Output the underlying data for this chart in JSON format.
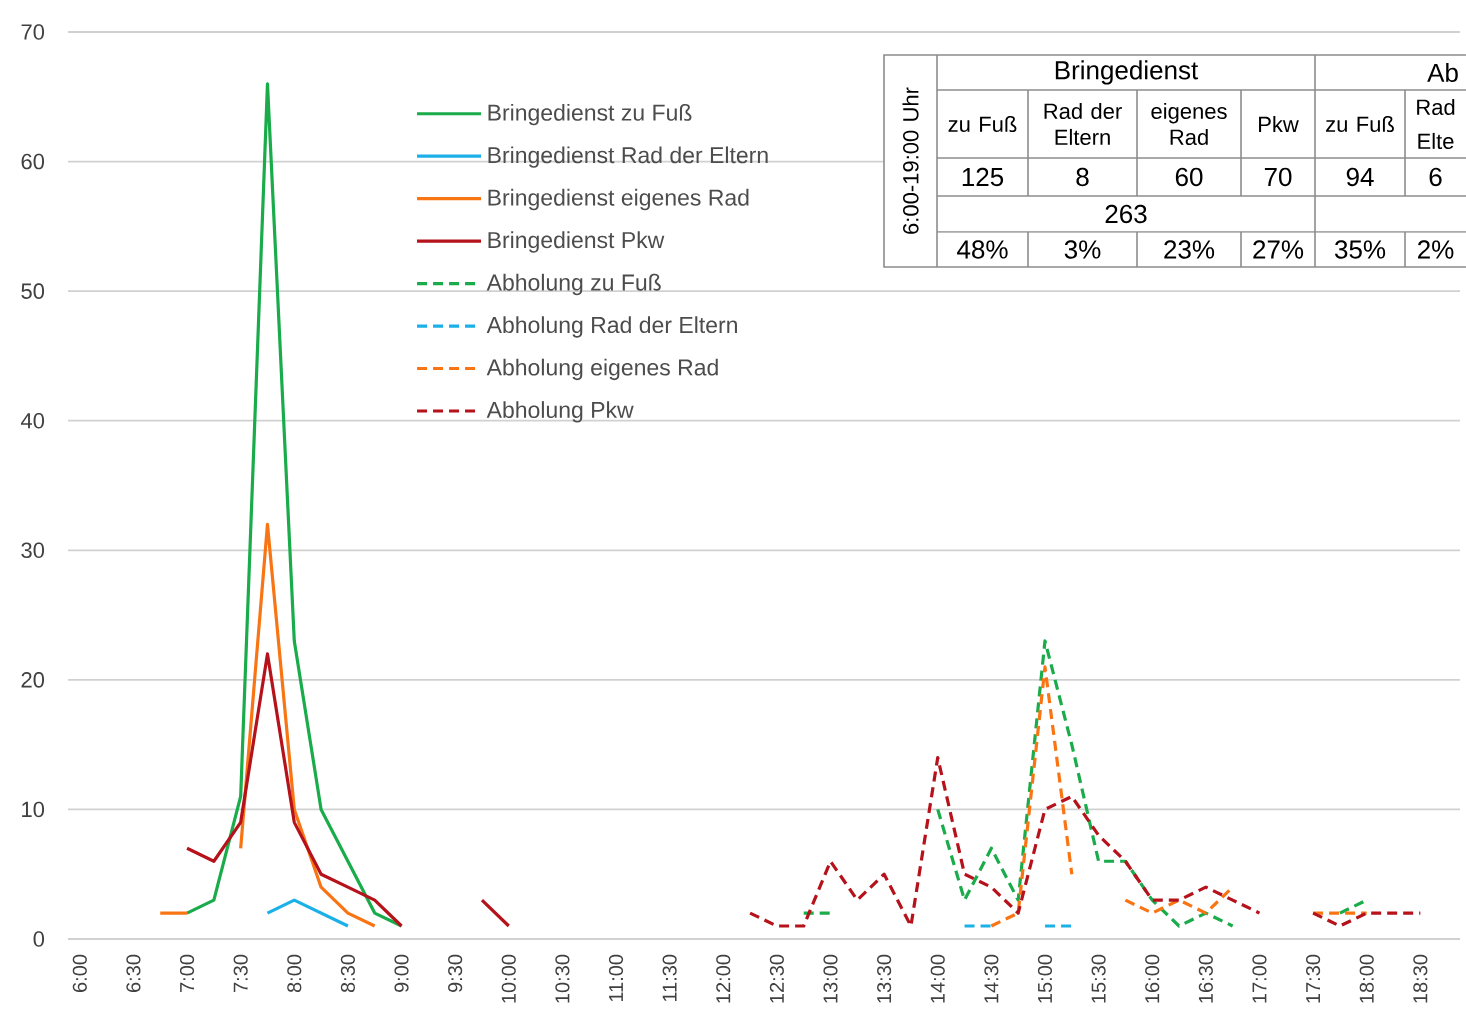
{
  "chart_data": {
    "type": "line",
    "xlim": [
      5.89,
      18.87
    ],
    "ylim": [
      0,
      70
    ],
    "xticks": [
      {
        "value": 6,
        "label": "6:00"
      },
      {
        "value": 6.5,
        "label": "6:30"
      },
      {
        "value": 7,
        "label": "7:00"
      },
      {
        "value": 7.5,
        "label": "7:30"
      },
      {
        "value": 8,
        "label": "8:00"
      },
      {
        "value": 8.5,
        "label": "8:30"
      },
      {
        "value": 9,
        "label": "9:00"
      },
      {
        "value": 9.5,
        "label": "9:30"
      },
      {
        "value": 10,
        "label": "10:00"
      },
      {
        "value": 10.5,
        "label": "10:30"
      },
      {
        "value": 11,
        "label": "11:00"
      },
      {
        "value": 11.5,
        "label": "11:30"
      },
      {
        "value": 12,
        "label": "12:00"
      },
      {
        "value": 12.5,
        "label": "12:30"
      },
      {
        "value": 13,
        "label": "13:00"
      },
      {
        "value": 13.5,
        "label": "13:30"
      },
      {
        "value": 14,
        "label": "14:00"
      },
      {
        "value": 14.5,
        "label": "14:30"
      },
      {
        "value": 15,
        "label": "15:00"
      },
      {
        "value": 15.5,
        "label": "15:30"
      },
      {
        "value": 16,
        "label": "16:00"
      },
      {
        "value": 16.5,
        "label": "16:30"
      },
      {
        "value": 17,
        "label": "17:00"
      },
      {
        "value": 17.5,
        "label": "17:30"
      },
      {
        "value": 18,
        "label": "18:00"
      },
      {
        "value": 18.5,
        "label": "18:30"
      }
    ],
    "yticks": [
      0,
      10,
      20,
      30,
      40,
      50,
      60,
      70
    ],
    "grid": "y",
    "legend": "top",
    "series": [
      {
        "name": "Bringedienst zu Fuß",
        "color": "#1aab4b",
        "line_style": "solid",
        "x": [
          7,
          7.25,
          7.5,
          7.75,
          8,
          8.25,
          8.5,
          8.75,
          9
        ],
        "values": [
          2,
          3,
          11,
          66,
          23,
          10,
          6,
          2,
          1
        ]
      },
      {
        "name": "Bringedienst Rad der Eltern",
        "color": "#1cb0e8",
        "line_style": "solid",
        "x": [
          7.75,
          8,
          8.25,
          8.5
        ],
        "values": [
          2,
          3,
          2,
          1
        ]
      },
      {
        "name": "Bringedienst eigenes Rad",
        "color": "#f97514",
        "line_style": "solid",
        "x": [
          6.75,
          7,
          7.25,
          7.5,
          7.75,
          8,
          8.25,
          8.5,
          8.75
        ],
        "values": [
          2,
          2,
          null,
          7,
          32,
          10,
          4,
          2,
          1
        ]
      },
      {
        "name": "Bringedienst  Pkw",
        "color": "#b5121b",
        "line_style": "solid",
        "x": [
          7,
          7.25,
          7.5,
          7.75,
          8,
          8.25,
          8.5,
          8.75,
          9,
          9.25,
          9.75,
          10
        ],
        "values": [
          7,
          6,
          9,
          22,
          9,
          5,
          4,
          3,
          1,
          null,
          3,
          1
        ]
      },
      {
        "name": "Abholung zu Fuß",
        "color": "#1aab4b",
        "line_style": "dashed",
        "x": [
          12.75,
          13,
          13.25,
          14,
          14.25,
          14.5,
          14.75,
          15,
          15.25,
          15.5,
          15.75,
          16,
          16.25,
          16.5,
          16.75,
          17,
          17.75,
          18
        ],
        "values": [
          2,
          2,
          null,
          10,
          3,
          7,
          3,
          23,
          15,
          6,
          6,
          3,
          1,
          2,
          1,
          null,
          2,
          3
        ]
      },
      {
        "name": "Abholung Rad der Eltern",
        "color": "#1cb0e8",
        "line_style": "dashed",
        "x": [
          14.25,
          14.5,
          14.75,
          15,
          15.25
        ],
        "values": [
          1,
          1,
          null,
          1,
          1
        ]
      },
      {
        "name": "Abholung eigenes Rad",
        "color": "#f97514",
        "line_style": "dashed",
        "x": [
          14.5,
          14.75,
          15,
          15.25,
          15.5,
          15.75,
          16,
          16.25,
          16.5,
          16.75,
          17,
          17.5,
          17.75,
          18
        ],
        "values": [
          1,
          2,
          21,
          5,
          null,
          3,
          2,
          3,
          2,
          4,
          null,
          2,
          2,
          2
        ]
      },
      {
        "name": "Abholung  Pkw",
        "color": "#b5121b",
        "line_style": "dashed",
        "x": [
          12.25,
          12.5,
          12.75,
          13,
          13.25,
          13.5,
          13.75,
          14,
          14.25,
          14.5,
          14.75,
          15,
          15.25,
          15.5,
          15.75,
          16,
          16.25,
          16.5,
          16.75,
          17,
          17.25,
          17.5,
          17.75,
          18,
          18.25,
          18.5
        ],
        "values": [
          2,
          1,
          1,
          6,
          3,
          5,
          1,
          14,
          5,
          4,
          2,
          10,
          11,
          8,
          6,
          3,
          3,
          4,
          3,
          2,
          null,
          2,
          1,
          2,
          2,
          2
        ]
      }
    ],
    "annotations": [
      "6:00-19:00 Uhr",
      "Bringedienst",
      "Ab",
      "zu Fuß",
      "Rad der Eltern",
      "eigenes Rad",
      "Pkw",
      "zu Fuß",
      "Rad",
      "Elte",
      "125",
      "8",
      "60",
      "70",
      "94",
      "6",
      "263",
      "48%",
      "3%",
      "23%",
      "27%",
      "35%",
      "2%"
    ]
  }
}
